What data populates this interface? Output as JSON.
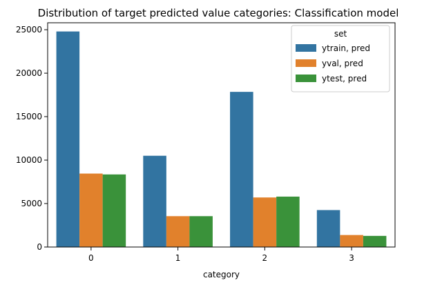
{
  "chart_data": {
    "type": "bar",
    "title": "Distribution of target predicted value categories: Classification model",
    "xlabel": "category",
    "ylabel": "",
    "categories": [
      "0",
      "1",
      "2",
      "3"
    ],
    "series": [
      {
        "name": "ytrain, pred",
        "color": "#3274a1",
        "values": [
          24800,
          10500,
          17850,
          4250
        ]
      },
      {
        "name": "yval, pred",
        "color": "#e1812c",
        "values": [
          8450,
          3550,
          5700,
          1380
        ]
      },
      {
        "name": "ytest, pred",
        "color": "#3a923a",
        "values": [
          8350,
          3550,
          5800,
          1280
        ]
      }
    ],
    "ylim": [
      0,
      25800
    ],
    "yticks": [
      0,
      5000,
      10000,
      15000,
      20000,
      25000
    ],
    "legend": {
      "title": "set",
      "placement": "top-right"
    },
    "grid": false
  }
}
